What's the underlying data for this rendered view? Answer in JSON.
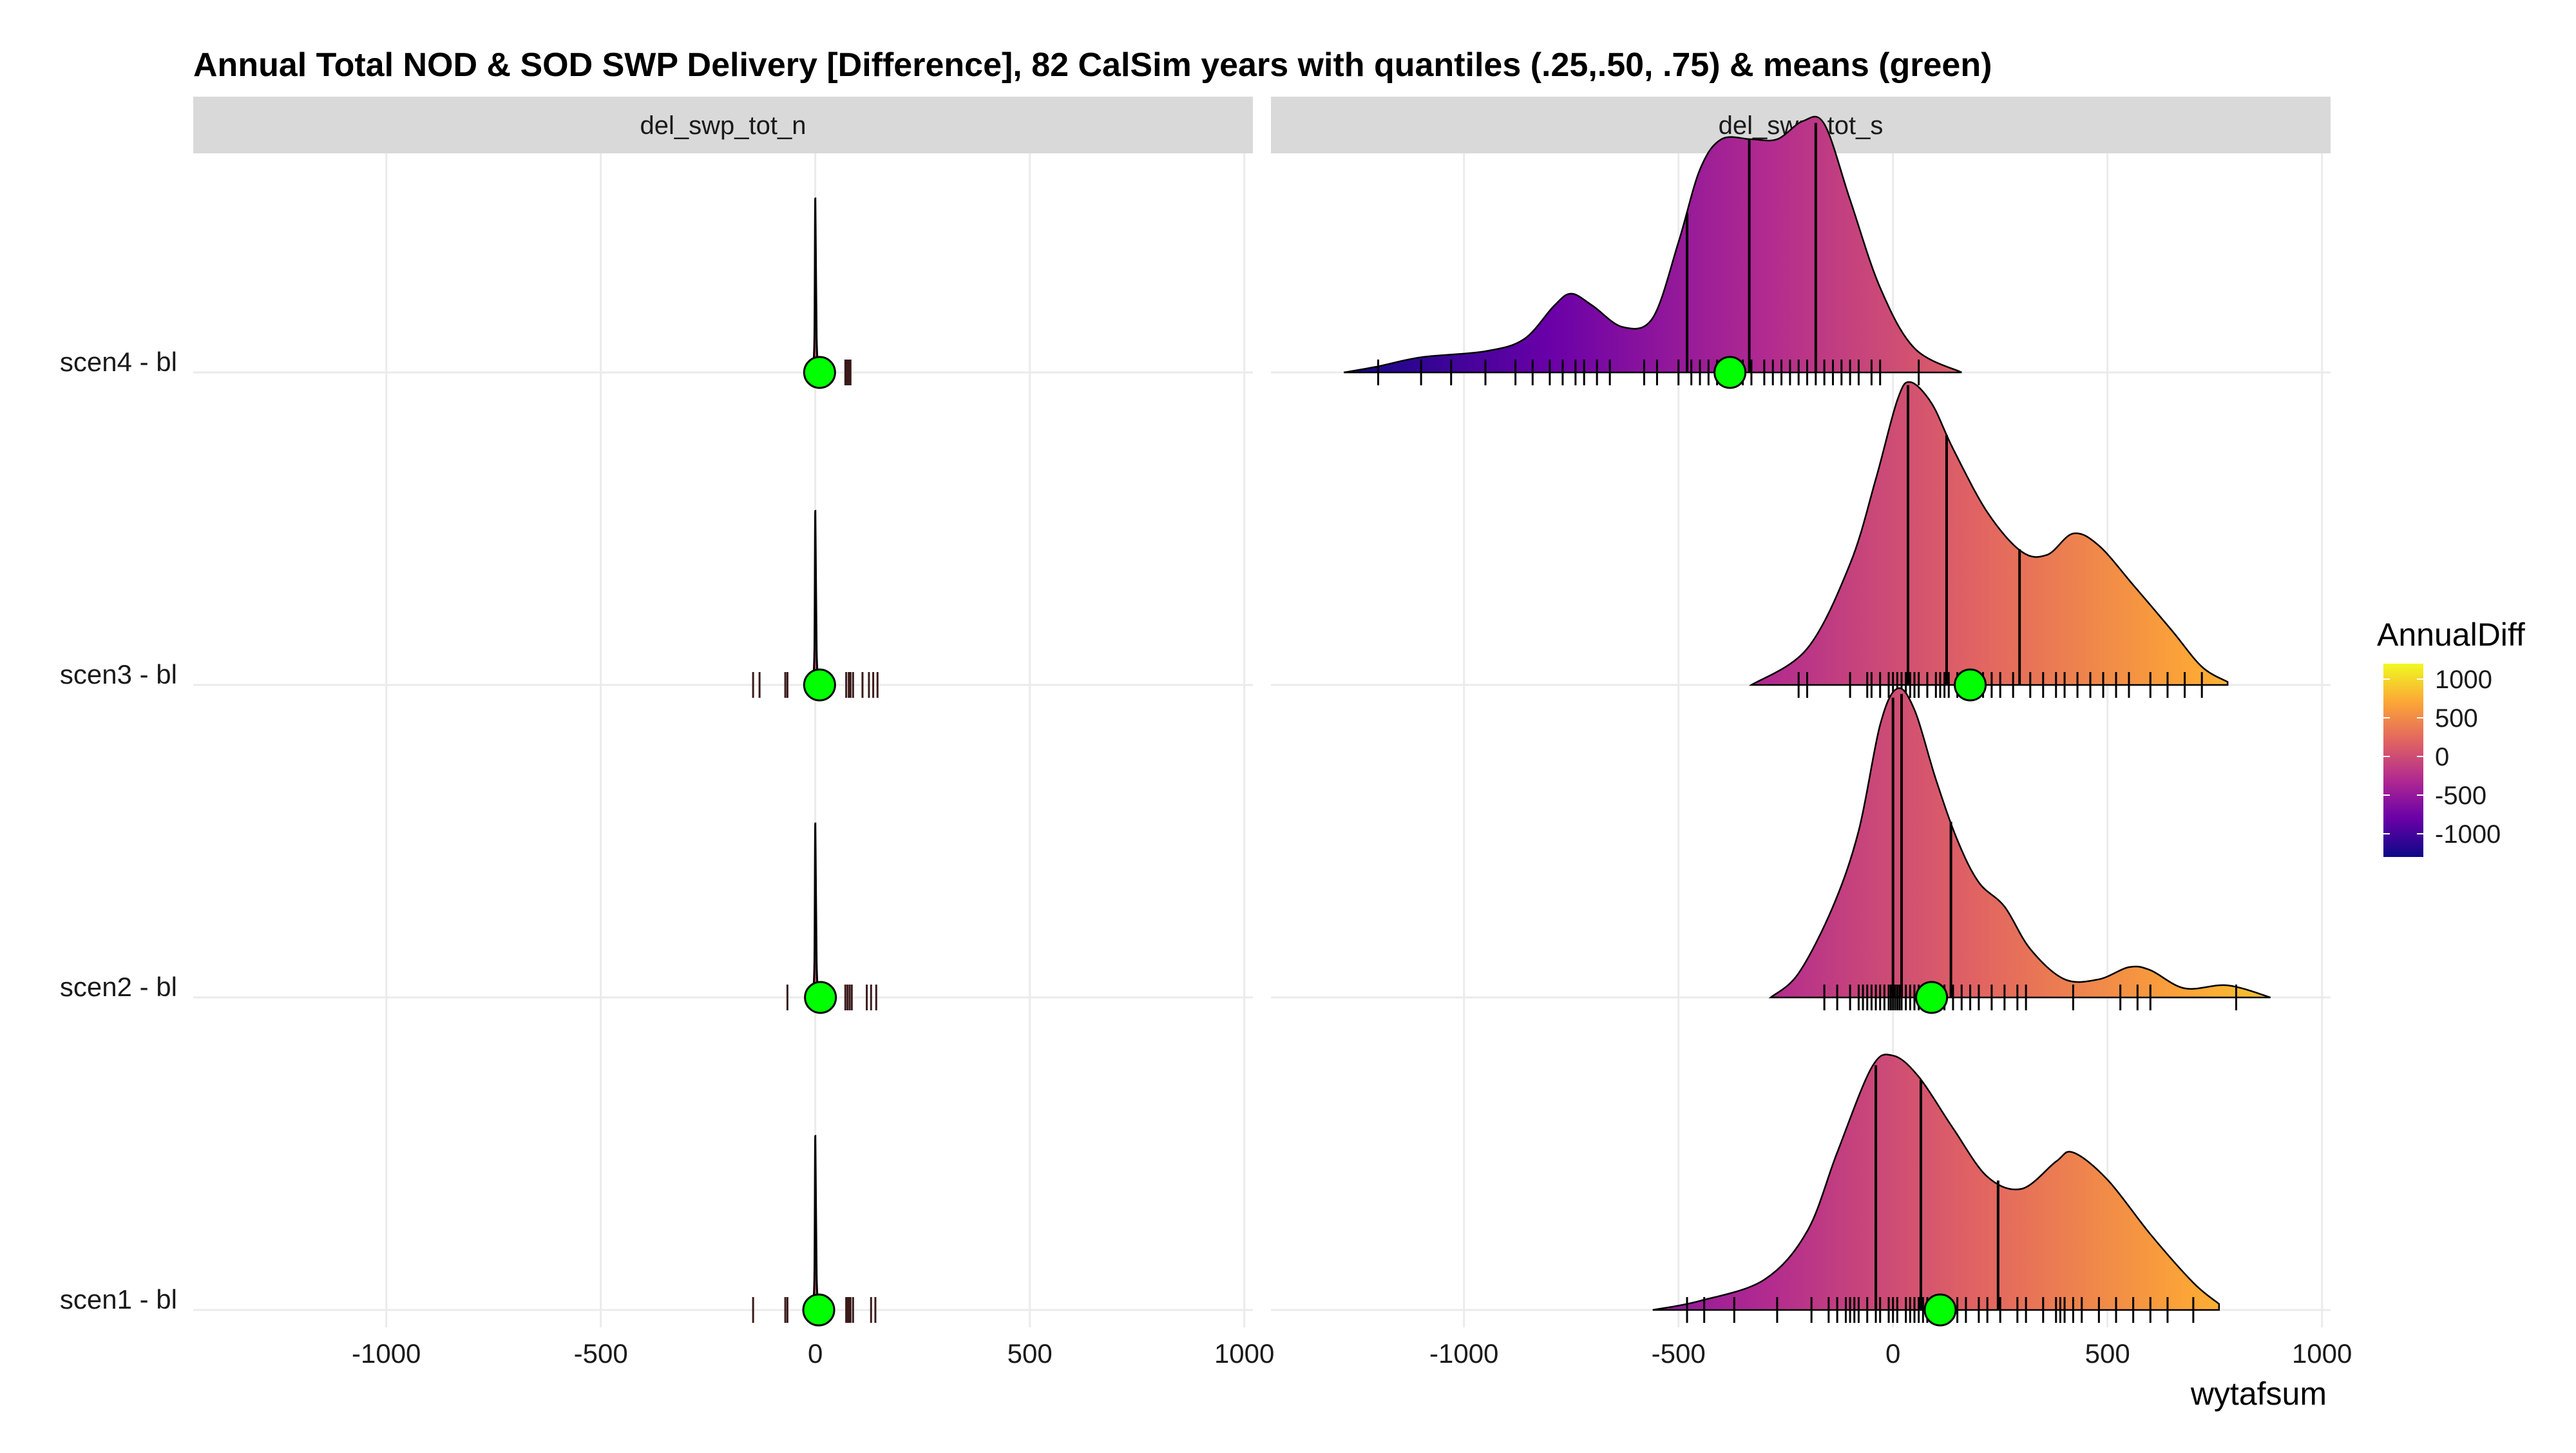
{
  "chart_data": {
    "type": "ridgeline",
    "title": "Annual Total NOD & SOD SWP Delivery [Difference], 82 CalSim years with quantiles (.25,.50, .75) & means (green)",
    "xlabel": "wytafsum",
    "ylabel": "",
    "xlim": [
      -1450,
      1020
    ],
    "x_ticks": [
      -1000,
      -500,
      0,
      500,
      1000
    ],
    "grid": true,
    "y_categories": [
      "scen1 - bl",
      "scen2 - bl",
      "scen3 - bl",
      "scen4 - bl"
    ],
    "mean_color": "#00ff00",
    "legend": {
      "title": "AnnualDiff",
      "placement": "right",
      "type": "colorbar",
      "range": [
        -1300,
        1200
      ],
      "ticks": [
        1000,
        500,
        0,
        -500,
        -1000
      ],
      "colors": [
        "#0d0887",
        "#6a00a8",
        "#b12a90",
        "#e16462",
        "#fca636",
        "#f0f921"
      ]
    },
    "panels": [
      {
        "name": "del_swp_tot_n",
        "series": [
          {
            "name": "scen1 - bl",
            "mean": 8,
            "quantiles": [
              0,
              1,
              3
            ],
            "density": [
              [
                -6,
                0
              ],
              [
                -2,
                0.2
              ],
              [
                0,
                1.0
              ],
              [
                3,
                0.2
              ],
              [
                8,
                0
              ]
            ],
            "rug": [
              -145,
              -70,
              -65,
              0,
              3,
              5,
              8,
              72,
              75,
              78,
              82,
              88,
              130,
              140
            ]
          },
          {
            "name": "scen2 - bl",
            "mean": 12,
            "quantiles": [
              0,
              1,
              3
            ],
            "density": [
              [
                -6,
                0
              ],
              [
                -2,
                0.2
              ],
              [
                0,
                1.0
              ],
              [
                3,
                0.2
              ],
              [
                8,
                0
              ]
            ],
            "rug": [
              -65,
              0,
              3,
              5,
              8,
              70,
              75,
              80,
              85,
              120,
              130,
              142
            ]
          },
          {
            "name": "scen3 - bl",
            "mean": 10,
            "quantiles": [
              0,
              1,
              3
            ],
            "density": [
              [
                -6,
                0
              ],
              [
                -2,
                0.2
              ],
              [
                0,
                1.0
              ],
              [
                3,
                0.2
              ],
              [
                8,
                0
              ]
            ],
            "rug": [
              -145,
              -130,
              -70,
              -65,
              -5,
              0,
              3,
              5,
              8,
              72,
              78,
              82,
              88,
              110,
              125,
              135,
              145
            ]
          },
          {
            "name": "scen4 - bl",
            "mean": 10,
            "quantiles": [
              0,
              1,
              3
            ],
            "density": [
              [
                -6,
                0
              ],
              [
                -2,
                0.2
              ],
              [
                0,
                1.0
              ],
              [
                3,
                0.2
              ],
              [
                8,
                0
              ]
            ],
            "rug": [
              0,
              3,
              5,
              70,
              72,
              75,
              78,
              80,
              82
            ]
          }
        ]
      },
      {
        "name": "del_swp_tot_s",
        "series": [
          {
            "name": "scen1 - bl",
            "mean": 110,
            "quantiles": [
              -40,
              65,
              245
            ],
            "density": [
              [
                -560,
                0
              ],
              [
                -450,
                0.03
              ],
              [
                -300,
                0.1
              ],
              [
                -200,
                0.26
              ],
              [
                -130,
                0.52
              ],
              [
                -50,
                0.8
              ],
              [
                0,
                0.84
              ],
              [
                60,
                0.77
              ],
              [
                140,
                0.6
              ],
              [
                220,
                0.44
              ],
              [
                300,
                0.4
              ],
              [
                380,
                0.49
              ],
              [
                420,
                0.52
              ],
              [
                500,
                0.43
              ],
              [
                600,
                0.25
              ],
              [
                700,
                0.09
              ],
              [
                760,
                0.02
              ]
            ],
            "rug": [
              -480,
              -440,
              -370,
              -270,
              -190,
              -150,
              -130,
              -110,
              -100,
              -90,
              -80,
              -60,
              -40,
              -30,
              -10,
              0,
              10,
              30,
              40,
              50,
              60,
              70,
              80,
              100,
              120,
              150,
              170,
              200,
              220,
              250,
              290,
              310,
              350,
              380,
              390,
              400,
              420,
              440,
              480,
              520,
              560,
              600,
              640,
              700
            ]
          },
          {
            "name": "scen2 - bl",
            "mean": 90,
            "quantiles": [
              0,
              20,
              135
            ],
            "density": [
              [
                -285,
                0
              ],
              [
                -220,
                0.08
              ],
              [
                -140,
                0.3
              ],
              [
                -80,
                0.55
              ],
              [
                -30,
                0.9
              ],
              [
                10,
                1.02
              ],
              [
                50,
                0.95
              ],
              [
                100,
                0.72
              ],
              [
                150,
                0.52
              ],
              [
                200,
                0.38
              ],
              [
                260,
                0.3
              ],
              [
                320,
                0.16
              ],
              [
                400,
                0.06
              ],
              [
                480,
                0.06
              ],
              [
                550,
                0.1
              ],
              [
                600,
                0.09
              ],
              [
                680,
                0.03
              ],
              [
                780,
                0.04
              ],
              [
                880,
                0
              ]
            ],
            "rug": [
              -160,
              -130,
              -100,
              -80,
              -70,
              -60,
              -50,
              -40,
              -30,
              -20,
              -10,
              -5,
              0,
              5,
              10,
              15,
              20,
              30,
              40,
              50,
              60,
              70,
              80,
              100,
              120,
              140,
              160,
              180,
              200,
              230,
              260,
              290,
              310,
              420,
              530,
              570,
              600,
              800
            ]
          },
          {
            "name": "scen3 - bl",
            "mean": 180,
            "quantiles": [
              35,
              125,
              295
            ],
            "density": [
              [
                -330,
                0
              ],
              [
                -200,
                0.12
              ],
              [
                -100,
                0.4
              ],
              [
                -40,
                0.68
              ],
              [
                10,
                0.94
              ],
              [
                40,
                1.0
              ],
              [
                90,
                0.93
              ],
              [
                140,
                0.78
              ],
              [
                220,
                0.57
              ],
              [
                300,
                0.44
              ],
              [
                360,
                0.43
              ],
              [
                420,
                0.5
              ],
              [
                480,
                0.46
              ],
              [
                560,
                0.33
              ],
              [
                650,
                0.18
              ],
              [
                720,
                0.06
              ],
              [
                780,
                0.01
              ]
            ],
            "rug": [
              -220,
              -200,
              -100,
              -60,
              -50,
              -30,
              -10,
              0,
              10,
              20,
              30,
              40,
              50,
              60,
              80,
              100,
              110,
              120,
              130,
              150,
              170,
              190,
              210,
              230,
              250,
              280,
              320,
              350,
              380,
              400,
              430,
              460,
              490,
              520,
              550,
              600,
              640,
              680,
              720
            ]
          },
          {
            "name": "scen4 - bl",
            "mean": -380,
            "quantiles": [
              -480,
              -335,
              -180
            ],
            "density": [
              [
                -1280,
                0
              ],
              [
                -1200,
                0.02
              ],
              [
                -1100,
                0.05
              ],
              [
                -950,
                0.07
              ],
              [
                -860,
                0.11
              ],
              [
                -790,
                0.22
              ],
              [
                -750,
                0.26
              ],
              [
                -700,
                0.22
              ],
              [
                -630,
                0.15
              ],
              [
                -560,
                0.18
              ],
              [
                -500,
                0.43
              ],
              [
                -450,
                0.67
              ],
              [
                -400,
                0.77
              ],
              [
                -330,
                0.77
              ],
              [
                -270,
                0.77
              ],
              [
                -210,
                0.83
              ],
              [
                -160,
                0.82
              ],
              [
                -100,
                0.57
              ],
              [
                -30,
                0.28
              ],
              [
                50,
                0.08
              ],
              [
                160,
                0
              ]
            ],
            "rug": [
              -1200,
              -1100,
              -1030,
              -950,
              -880,
              -840,
              -800,
              -770,
              -740,
              -720,
              -690,
              -660,
              -580,
              -550,
              -500,
              -470,
              -450,
              -430,
              -410,
              -390,
              -370,
              -350,
              -330,
              -300,
              -280,
              -260,
              -240,
              -220,
              -200,
              -180,
              -160,
              -140,
              -120,
              -100,
              -80,
              -50,
              -30,
              60
            ]
          }
        ]
      }
    ]
  }
}
